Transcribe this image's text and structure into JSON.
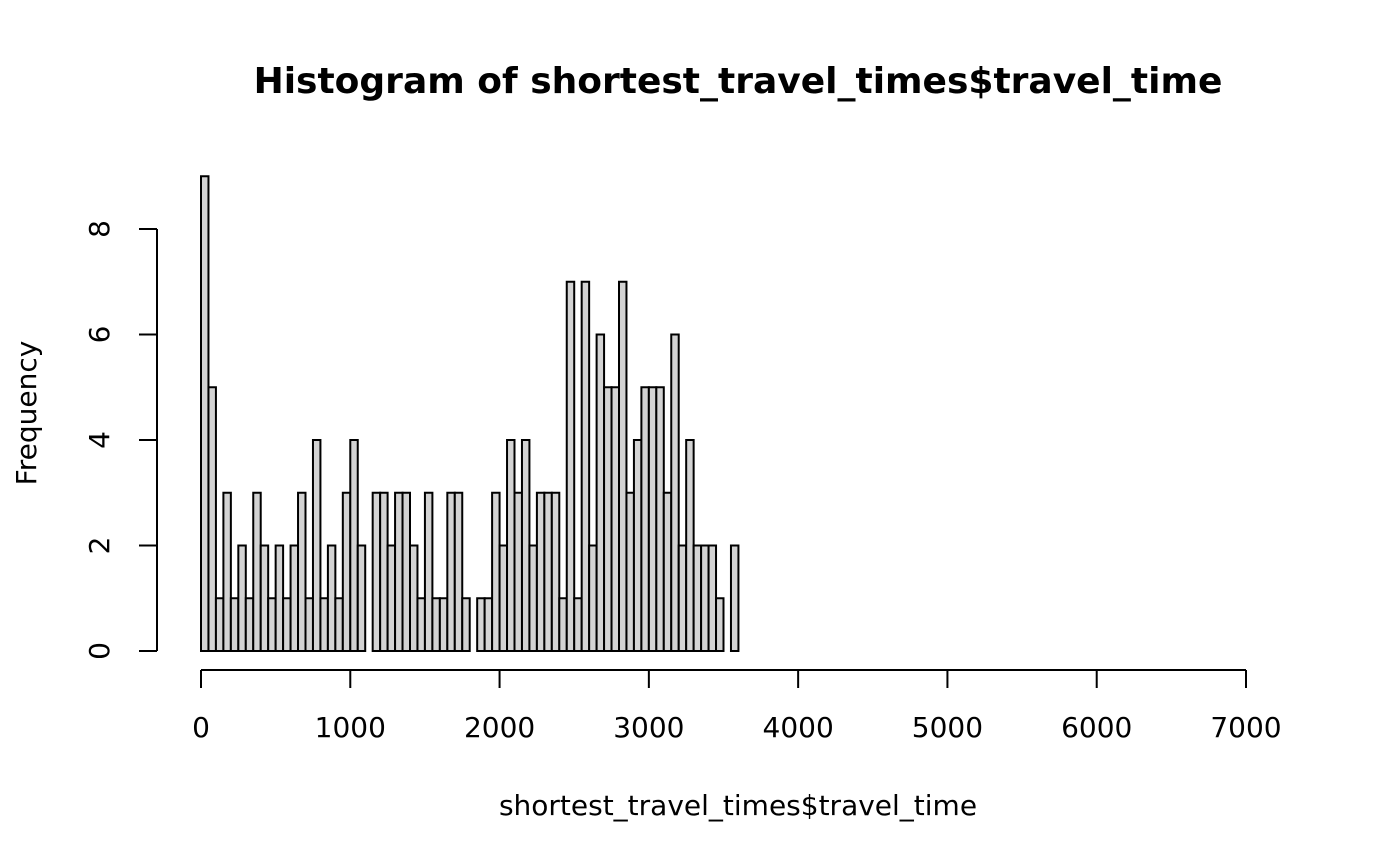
{
  "chart_data": {
    "type": "bar",
    "subtype": "histogram",
    "title": "Histogram of shortest_travel_times$travel_time",
    "xlabel": "shortest_travel_times$travel_time",
    "ylabel": "Frequency",
    "bin_width": 50,
    "bin_start": 0,
    "counts": [
      9,
      5,
      1,
      3,
      1,
      2,
      1,
      3,
      2,
      1,
      2,
      1,
      2,
      3,
      1,
      4,
      1,
      2,
      1,
      3,
      4,
      2,
      0,
      3,
      3,
      2,
      3,
      3,
      2,
      1,
      3,
      1,
      1,
      3,
      3,
      1,
      0,
      1,
      1,
      3,
      2,
      4,
      3,
      4,
      2,
      3,
      3,
      3,
      1,
      7,
      1,
      7,
      2,
      6,
      5,
      5,
      7,
      3,
      4,
      5,
      5,
      5,
      3,
      6,
      2,
      4,
      2,
      2,
      2,
      1,
      0,
      2,
      0,
      0,
      0,
      0,
      0,
      0,
      0,
      0,
      0,
      0,
      0,
      0,
      0,
      0,
      0,
      0,
      0,
      0,
      0,
      0,
      0,
      0,
      0,
      0,
      0,
      0,
      0,
      0,
      0,
      0,
      0,
      0,
      0,
      0,
      0,
      0,
      0,
      0,
      0,
      0,
      0,
      0,
      0,
      0,
      0,
      0,
      0,
      0,
      0,
      0,
      0,
      0,
      0,
      0,
      0,
      0,
      0,
      0,
      0,
      0,
      0,
      0,
      0,
      0,
      0,
      0,
      0,
      0,
      0,
      0,
      0,
      0
    ],
    "xlim": [
      0,
      7200
    ],
    "ylim": [
      0,
      9
    ],
    "x_ticks": [
      "0",
      "1000",
      "2000",
      "3000",
      "4000",
      "5000",
      "6000",
      "7000"
    ],
    "y_ticks": [
      "0",
      "2",
      "4",
      "6",
      "8"
    ],
    "bar_fill": "#d3d3d3",
    "bar_stroke": "#000000",
    "grid": false
  }
}
